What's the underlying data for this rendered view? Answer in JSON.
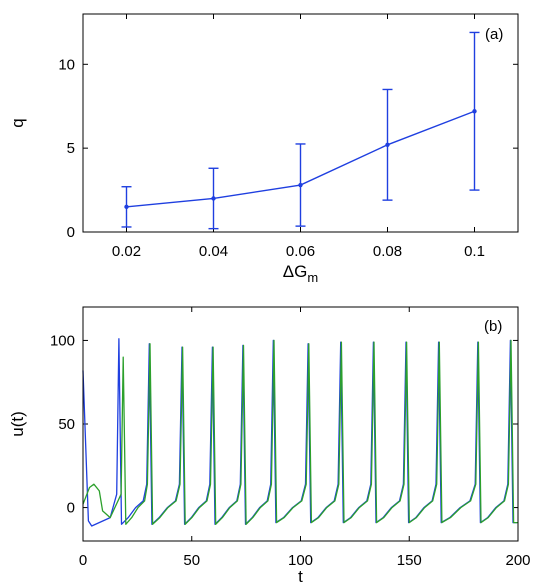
{
  "chart_data": [
    {
      "type": "line",
      "panel_label": "(a)",
      "xlabel": "ΔG",
      "xlabel_subscript": "m",
      "ylabel": "q",
      "xlim": [
        0.01,
        0.11
      ],
      "ylim": [
        0,
        13
      ],
      "xticks": [
        0.02,
        0.04,
        0.06,
        0.08,
        0.1
      ],
      "xtick_labels": [
        "0.02",
        "0.04",
        "0.06",
        "0.08",
        "0.1"
      ],
      "yticks": [
        0,
        5,
        10
      ],
      "ytick_labels": [
        "0",
        "5",
        "10"
      ],
      "color": "#1f3fe0",
      "series": [
        {
          "x": [
            0.02,
            0.04,
            0.06,
            0.08,
            0.1
          ],
          "y": [
            1.5,
            2.0,
            2.8,
            5.2,
            7.2
          ],
          "err_low": [
            0.3,
            0.2,
            0.35,
            1.9,
            2.5
          ],
          "err_high": [
            2.7,
            3.8,
            5.25,
            8.5,
            11.9
          ]
        }
      ]
    },
    {
      "type": "line",
      "panel_label": "(b)",
      "xlabel": "t",
      "ylabel": "u(t)",
      "xlim": [
        0,
        200
      ],
      "ylim": [
        -20,
        120
      ],
      "xticks": [
        0,
        50,
        100,
        150,
        200
      ],
      "xtick_labels": [
        "0",
        "50",
        "100",
        "150",
        "200"
      ],
      "yticks": [
        0,
        50,
        100
      ],
      "ytick_labels": [
        "0",
        "50",
        "100"
      ],
      "series": [
        {
          "color": "#1f3fe0",
          "first_spike_t": 16.5,
          "start_u": 82
        },
        {
          "color": "#2ca02c",
          "first_spike_t": 18.5,
          "start_u": 2
        }
      ],
      "spike_times": [
        30.5,
        45.5,
        59.5,
        73.5,
        87.5,
        103.5,
        118.5,
        133.5,
        148.5,
        163.5,
        181.5,
        196.5
      ],
      "spike_peaks": [
        98,
        96,
        96,
        97,
        100,
        98,
        99,
        99,
        99,
        99,
        99,
        100
      ],
      "spike_troughs": [
        -10,
        -10,
        -10,
        -10,
        -9,
        -9,
        -9,
        -9,
        -9,
        -9,
        -9,
        -9
      ]
    }
  ]
}
